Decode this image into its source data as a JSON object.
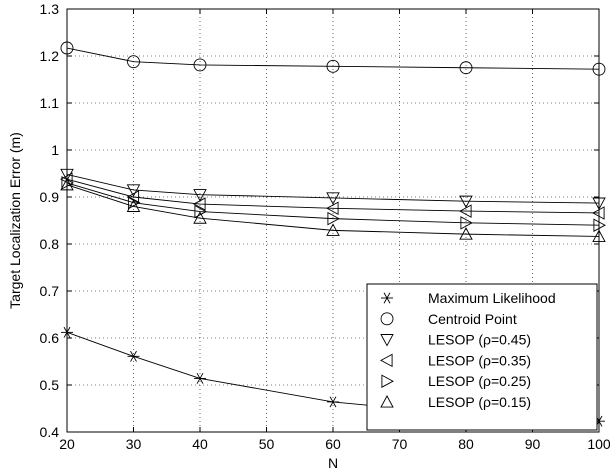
{
  "chart_data": {
    "type": "line",
    "title": "",
    "xlabel": "N",
    "ylabel": "Target Localization Error  (m)",
    "xlim": [
      20,
      100
    ],
    "ylim": [
      0.4,
      1.3
    ],
    "xticks": [
      20,
      30,
      40,
      50,
      60,
      70,
      80,
      90,
      100
    ],
    "xtick_labels": [
      "20",
      "30",
      "40",
      "50",
      "60",
      "70",
      "80",
      "90",
      "100"
    ],
    "yticks": [
      0.4,
      0.5,
      0.6,
      0.7,
      0.8,
      0.9,
      1.0,
      1.1,
      1.2,
      1.3
    ],
    "ytick_labels": [
      "0.4",
      "0.5",
      "0.6",
      "0.7",
      "0.8",
      "0.9",
      "1",
      "1.1",
      "1.2",
      "1.3"
    ],
    "grid": true,
    "legend_position": "bottom-right",
    "x": [
      20,
      30,
      40,
      60,
      80,
      100
    ],
    "series": [
      {
        "name": "Maximum Likelihood",
        "marker": "star",
        "values": [
          0.612,
          0.561,
          0.514,
          0.464,
          0.437,
          0.423
        ]
      },
      {
        "name": "Centroid Point",
        "marker": "circle",
        "values": [
          1.217,
          1.188,
          1.181,
          1.178,
          1.175,
          1.172
        ]
      },
      {
        "name": "LESOP (ρ=0.45)",
        "marker": "triangle-down",
        "values": [
          0.948,
          0.915,
          0.905,
          0.898,
          0.891,
          0.887
        ]
      },
      {
        "name": "LESOP (ρ=0.35)",
        "marker": "triangle-left",
        "values": [
          0.938,
          0.9,
          0.885,
          0.876,
          0.87,
          0.866
        ]
      },
      {
        "name": "LESOP (ρ=0.25)",
        "marker": "triangle-right",
        "values": [
          0.93,
          0.888,
          0.869,
          0.854,
          0.845,
          0.84
        ]
      },
      {
        "name": "LESOP (ρ=0.15)",
        "marker": "triangle-up",
        "values": [
          0.926,
          0.88,
          0.855,
          0.829,
          0.821,
          0.816
        ]
      }
    ]
  }
}
